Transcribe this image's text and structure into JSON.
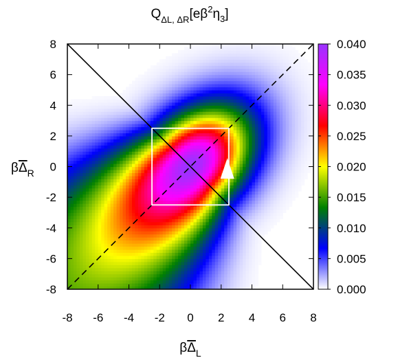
{
  "chart_data": {
    "type": "heatmap",
    "title": "Q_ΔL,ΔR[eβ²η₃]",
    "title_parts": {
      "main": "Q",
      "sub": "ΔL, ΔR",
      "rest_open": "[eβ",
      "sup": "2",
      "eta": "η",
      "eta_sub": "3",
      "rest_close": "]"
    },
    "xlabel": "βΔL",
    "xlabel_parts": {
      "beta": "β",
      "delta": "Δ",
      "sub": "L"
    },
    "ylabel": "βΔR",
    "ylabel_parts": {
      "beta": "β",
      "delta": "Δ",
      "sub": "R"
    },
    "xlim": [
      -8,
      8
    ],
    "ylim": [
      -8,
      8
    ],
    "xticks": [
      -8,
      -6,
      -4,
      -2,
      0,
      2,
      4,
      6,
      8
    ],
    "yticks": [
      -8,
      -6,
      -4,
      -2,
      0,
      2,
      4,
      6,
      8
    ],
    "xtick_labels": [
      "-8",
      "-6",
      "-4",
      "-2",
      "0",
      "2",
      "4",
      "6",
      "8"
    ],
    "ytick_labels": [
      "-8",
      "-6",
      "-4",
      "-2",
      "0",
      "2",
      "4",
      "6",
      "8"
    ],
    "colorbar": {
      "range": [
        0.0,
        0.04
      ],
      "ticks": [
        0.0,
        0.005,
        0.01,
        0.015,
        0.02,
        0.025,
        0.03,
        0.035,
        0.04
      ],
      "tick_labels": [
        "0.000",
        "0.005",
        "0.010",
        "0.015",
        "0.020",
        "0.025",
        "0.030",
        "0.035",
        "0.040"
      ],
      "palette": [
        "#ffffff",
        "#0000ff",
        "#008000",
        "#ffff00",
        "#ff0000",
        "#ff00ff",
        "#9933ff"
      ]
    },
    "peak": {
      "x": 0,
      "y": 0,
      "value": 0.04
    },
    "overlays": {
      "solid_line": {
        "from": [
          -8,
          8
        ],
        "to": [
          8,
          -8
        ]
      },
      "dashed_line": {
        "from": [
          -8,
          -8
        ],
        "to": [
          8,
          8
        ]
      },
      "box": {
        "x": [
          -2.5,
          2.5
        ],
        "y": [
          -2.5,
          2.5
        ]
      },
      "marker": {
        "shape": "triangle-up",
        "x": 2.4,
        "y": -0.7,
        "color": "#ffffff"
      }
    }
  }
}
